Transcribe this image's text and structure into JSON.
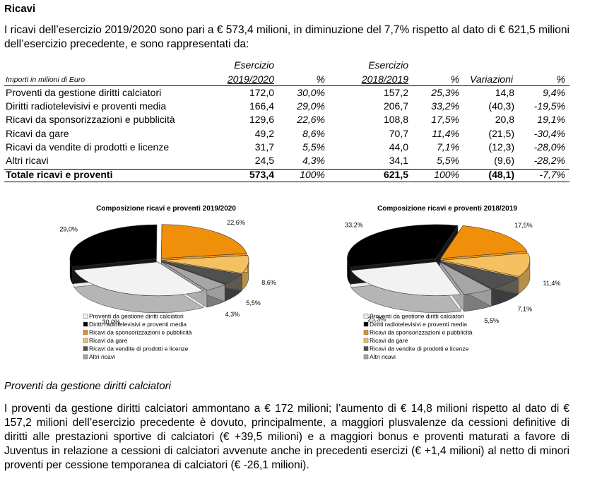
{
  "heading": "Ricavi",
  "intro": "I ricavi dell’esercizio 2019/2020 sono pari a € 573,4 milioni, in diminuzione del 7,7% rispetto al dato di € 621,5 milioni dell’esercizio precedente, e sono rappresentati da:",
  "table": {
    "caption": "Importi in milioni di Euro",
    "header_top": [
      "Esercizio",
      "Esercizio"
    ],
    "header": [
      "2019/2020",
      "%",
      "2018/2019",
      "%",
      "Variazioni",
      "%"
    ],
    "rows": [
      [
        "Proventi da gestione diritti calciatori",
        "172,0",
        "30,0%",
        "157,2",
        "25,3%",
        "14,8",
        "9,4%"
      ],
      [
        "Diritti radiotelevisivi e proventi media",
        "166,4",
        "29,0%",
        "206,7",
        "33,2%",
        "(40,3)",
        "-19,5%"
      ],
      [
        "Ricavi da sponsorizzazioni e pubblicità",
        "129,6",
        "22,6%",
        "108,8",
        "17,5%",
        "20,8",
        "19,1%"
      ],
      [
        "Ricavi da gare",
        "49,2",
        "8,6%",
        "70,7",
        "11,4%",
        "(21,5)",
        "-30,4%"
      ],
      [
        "Ricavi da vendite di prodotti e licenze",
        "31,7",
        "5,5%",
        "44,0",
        "7,1%",
        "(12,3)",
        "-28,0%"
      ],
      [
        "Altri ricavi",
        "24,5",
        "4,3%",
        "34,1",
        "5,5%",
        "(9,6)",
        "-28,2%"
      ]
    ],
    "total": [
      "Totale ricavi e proventi",
      "573,4",
      "100%",
      "621,5",
      "100%",
      "(48,1)",
      "-7,7%"
    ]
  },
  "chart_data": [
    {
      "type": "pie",
      "title": "Composizione ricavi e proventi 2019/2020",
      "categories": [
        "Proventi da gestione diritti calciatori",
        "Diritti radiotelevisivi e proventi media",
        "Ricavi da sponsorizzazioni e pubblicità",
        "Ricavi da gare",
        "Ricavi da vendite di prodotti e licenze",
        "Altri ricavi"
      ],
      "values": [
        30.0,
        29.0,
        22.6,
        8.6,
        5.5,
        4.3
      ],
      "value_labels": [
        "30,0%",
        "29,0%",
        "22,6%",
        "8,6%",
        "5,5%",
        "4,3%"
      ],
      "colors": [
        "#f2f2f2",
        "#000000",
        "#f0900a",
        "#f5c060",
        "#505050",
        "#a6a6a6"
      ]
    },
    {
      "type": "pie",
      "title": "Composizione ricavi e proventi 2018/2019",
      "categories": [
        "Proventi da gestione diritti calciatori",
        "Diritti radiotelevisivi e proventi media",
        "Ricavi da sponsorizzazioni e pubblicità",
        "Ricavi da gare",
        "Ricavi da vendite di prodotti e licenze",
        "Altri ricavi"
      ],
      "values": [
        25.3,
        33.2,
        17.5,
        11.4,
        7.1,
        5.5
      ],
      "value_labels": [
        "25,3%",
        "33,2%",
        "17,5%",
        "11,4%",
        "7,1%",
        "5,5%"
      ],
      "colors": [
        "#f2f2f2",
        "#000000",
        "#f0900a",
        "#f5c060",
        "#505050",
        "#a6a6a6"
      ]
    }
  ],
  "subheading": "Proventi da gestione diritti calciatori",
  "body": "I proventi da gestione diritti calciatori ammontano a € 172 milioni; l’aumento di € 14,8 milioni rispetto al dato di € 157,2 milioni dell’esercizio precedente è dovuto, principalmente, a maggiori plusvalenze da cessioni definitive di diritti alle prestazioni sportive di calciatori (€ +39,5 milioni) e a maggiori bonus e proventi maturati a favore di Juventus in relazione a cessioni di calciatori avvenute anche in precedenti esercizi (€ +1,4 milioni) al netto di minori proventi per cessione temporanea di calciatori (€ -26,1 milioni)."
}
